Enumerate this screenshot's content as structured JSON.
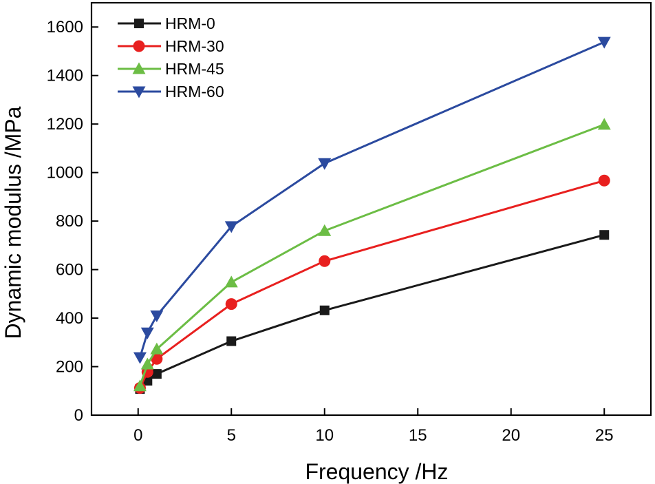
{
  "chart_data": {
    "type": "line",
    "title": "",
    "xlabel": "Frequency /Hz",
    "ylabel": "Dynamic modulus /MPa",
    "xlim": [
      -2.5,
      27.5
    ],
    "ylim": [
      0,
      1700
    ],
    "x_ticks": [
      0,
      5,
      10,
      15,
      20,
      25
    ],
    "y_ticks": [
      0,
      200,
      400,
      600,
      800,
      1000,
      1200,
      1400,
      1600
    ],
    "x_tick_labels": [
      "0",
      "5",
      "10",
      "15",
      "20",
      "25"
    ],
    "y_tick_labels": [
      "0",
      "200",
      "400",
      "600",
      "800",
      "1000",
      "1200",
      "1400",
      "1600"
    ],
    "grid": false,
    "legend_position": "top-left",
    "series": [
      {
        "name": "HRM-0",
        "color": "#1a1a1a",
        "marker": "square",
        "x": [
          0.1,
          0.5,
          1,
          5,
          10,
          25
        ],
        "y": [
          108,
          142,
          170,
          305,
          432,
          743
        ]
      },
      {
        "name": "HRM-30",
        "color": "#e8201f",
        "marker": "circle",
        "x": [
          0.1,
          0.5,
          1,
          5,
          10,
          25
        ],
        "y": [
          112,
          178,
          232,
          458,
          635,
          967
        ]
      },
      {
        "name": "HRM-45",
        "color": "#6cbd45",
        "marker": "triangle-up",
        "x": [
          0.1,
          0.5,
          1,
          5,
          10,
          25
        ],
        "y": [
          120,
          210,
          272,
          548,
          760,
          1198
        ]
      },
      {
        "name": "HRM-60",
        "color": "#2b4a9f",
        "marker": "triangle-down",
        "x": [
          0.1,
          0.5,
          1,
          5,
          10,
          25
        ],
        "y": [
          238,
          340,
          410,
          778,
          1038,
          1538
        ]
      }
    ]
  }
}
